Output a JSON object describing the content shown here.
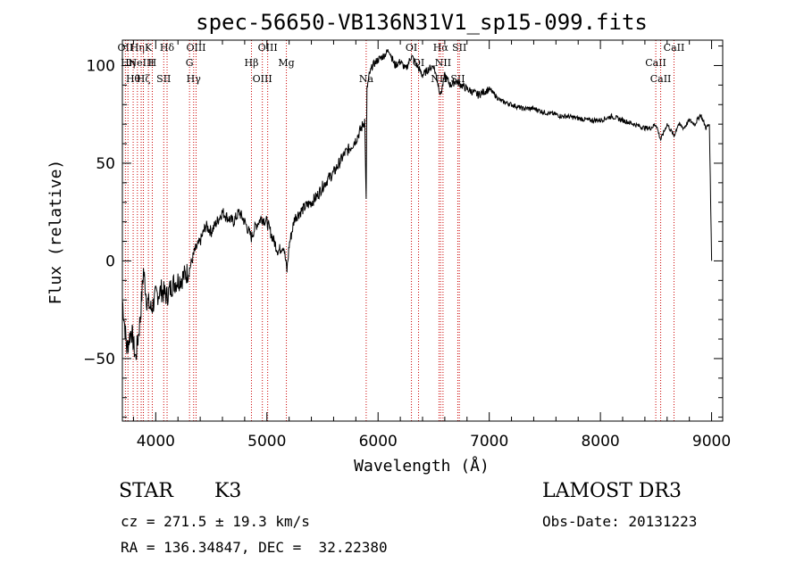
{
  "chart_data": {
    "type": "line",
    "title": "spec-56650-VB136N31V1_sp15-099.fits",
    "xlabel": "Wavelength (Å)",
    "ylabel": "Flux (relative)",
    "xlim": [
      3700,
      9100
    ],
    "ylim": [
      -82,
      113
    ],
    "xticks": [
      4000,
      5000,
      6000,
      7000,
      8000,
      9000
    ],
    "xtick_labels": [
      "4000",
      "5000",
      "6000",
      "7000",
      "8000",
      "9000"
    ],
    "yticks": [
      -50,
      0,
      50,
      100
    ],
    "ytick_labels": [
      "−50",
      "0",
      "50",
      "100"
    ],
    "series": [
      {
        "name": "flux",
        "x": [
          3700,
          3740,
          3780,
          3820,
          3860,
          3890,
          3920,
          3960,
          4000,
          4050,
          4100,
          4150,
          4200,
          4250,
          4300,
          4350,
          4400,
          4450,
          4500,
          4550,
          4600,
          4650,
          4700,
          4750,
          4800,
          4860,
          4900,
          4950,
          5000,
          5050,
          5100,
          5150,
          5180,
          5200,
          5250,
          5300,
          5350,
          5400,
          5450,
          5500,
          5550,
          5600,
          5650,
          5700,
          5750,
          5800,
          5850,
          5880,
          5893,
          5900,
          5920,
          5950,
          6000,
          6050,
          6100,
          6150,
          6200,
          6250,
          6300,
          6350,
          6400,
          6450,
          6500,
          6563,
          6600,
          6650,
          6700,
          6750,
          6800,
          6900,
          7000,
          7100,
          7200,
          7300,
          7400,
          7500,
          7600,
          7650,
          7700,
          7800,
          7900,
          8000,
          8100,
          8200,
          8300,
          8400,
          8450,
          8500,
          8542,
          8600,
          8662,
          8700,
          8750,
          8800,
          8850,
          8900,
          8950,
          8980,
          9000
        ],
        "values": [
          -20,
          -45,
          -35,
          -50,
          -30,
          -5,
          -20,
          -25,
          -18,
          -15,
          -18,
          -12,
          -10,
          -8,
          -5,
          5,
          10,
          18,
          15,
          20,
          25,
          22,
          20,
          25,
          20,
          12,
          18,
          22,
          20,
          12,
          5,
          8,
          -5,
          8,
          22,
          25,
          28,
          30,
          33,
          38,
          42,
          45,
          50,
          55,
          58,
          62,
          68,
          72,
          30,
          88,
          95,
          100,
          103,
          105,
          108,
          100,
          102,
          98,
          105,
          100,
          95,
          98,
          100,
          85,
          95,
          90,
          92,
          90,
          88,
          85,
          88,
          82,
          80,
          78,
          78,
          76,
          75,
          74,
          74,
          73,
          72,
          72,
          74,
          72,
          70,
          68,
          68,
          70,
          62,
          70,
          64,
          70,
          68,
          72,
          70,
          75,
          68,
          70,
          0
        ]
      }
    ],
    "lines": [
      {
        "wave": 3727,
        "label": "OII"
      },
      {
        "wave": 3750,
        "label": "Hη"
      },
      {
        "wave": 3797,
        "label": "Hθ"
      },
      {
        "wave": 3835,
        "label": "Hη"
      },
      {
        "wave": 3869,
        "label": "NeIII"
      },
      {
        "wave": 3889,
        "label": "Hζ"
      },
      {
        "wave": 3934,
        "label": "K"
      },
      {
        "wave": 3969,
        "label": "H"
      },
      {
        "wave": 4072,
        "label": "SII"
      },
      {
        "wave": 4102,
        "label": "Hδ"
      },
      {
        "wave": 4304,
        "label": "G"
      },
      {
        "wave": 4341,
        "label": "Hγ"
      },
      {
        "wave": 4363,
        "label": "OIII"
      },
      {
        "wave": 4861,
        "label": "Hβ"
      },
      {
        "wave": 4959,
        "label": "OIII"
      },
      {
        "wave": 5007,
        "label": "OIII"
      },
      {
        "wave": 5175,
        "label": "Mg"
      },
      {
        "wave": 5893,
        "label": "Na"
      },
      {
        "wave": 6300,
        "label": "OI"
      },
      {
        "wave": 6364,
        "label": "OI"
      },
      {
        "wave": 6548,
        "label": "NII"
      },
      {
        "wave": 6563,
        "label": "Hα"
      },
      {
        "wave": 6584,
        "label": "NII"
      },
      {
        "wave": 6717,
        "label": "SII"
      },
      {
        "wave": 6731,
        "label": "SII"
      },
      {
        "wave": 8498,
        "label": "CaII"
      },
      {
        "wave": 8542,
        "label": "CaII"
      },
      {
        "wave": 8662,
        "label": "CaII"
      }
    ]
  },
  "info": {
    "class_label": "STAR",
    "subclass": "K3",
    "survey": "LAMOST DR3",
    "cz": "cz = 271.5 ± 19.3 km/s",
    "obs_date": "Obs-Date: 20131223",
    "radec": "RA = 136.34847, DEC =  32.22380"
  }
}
